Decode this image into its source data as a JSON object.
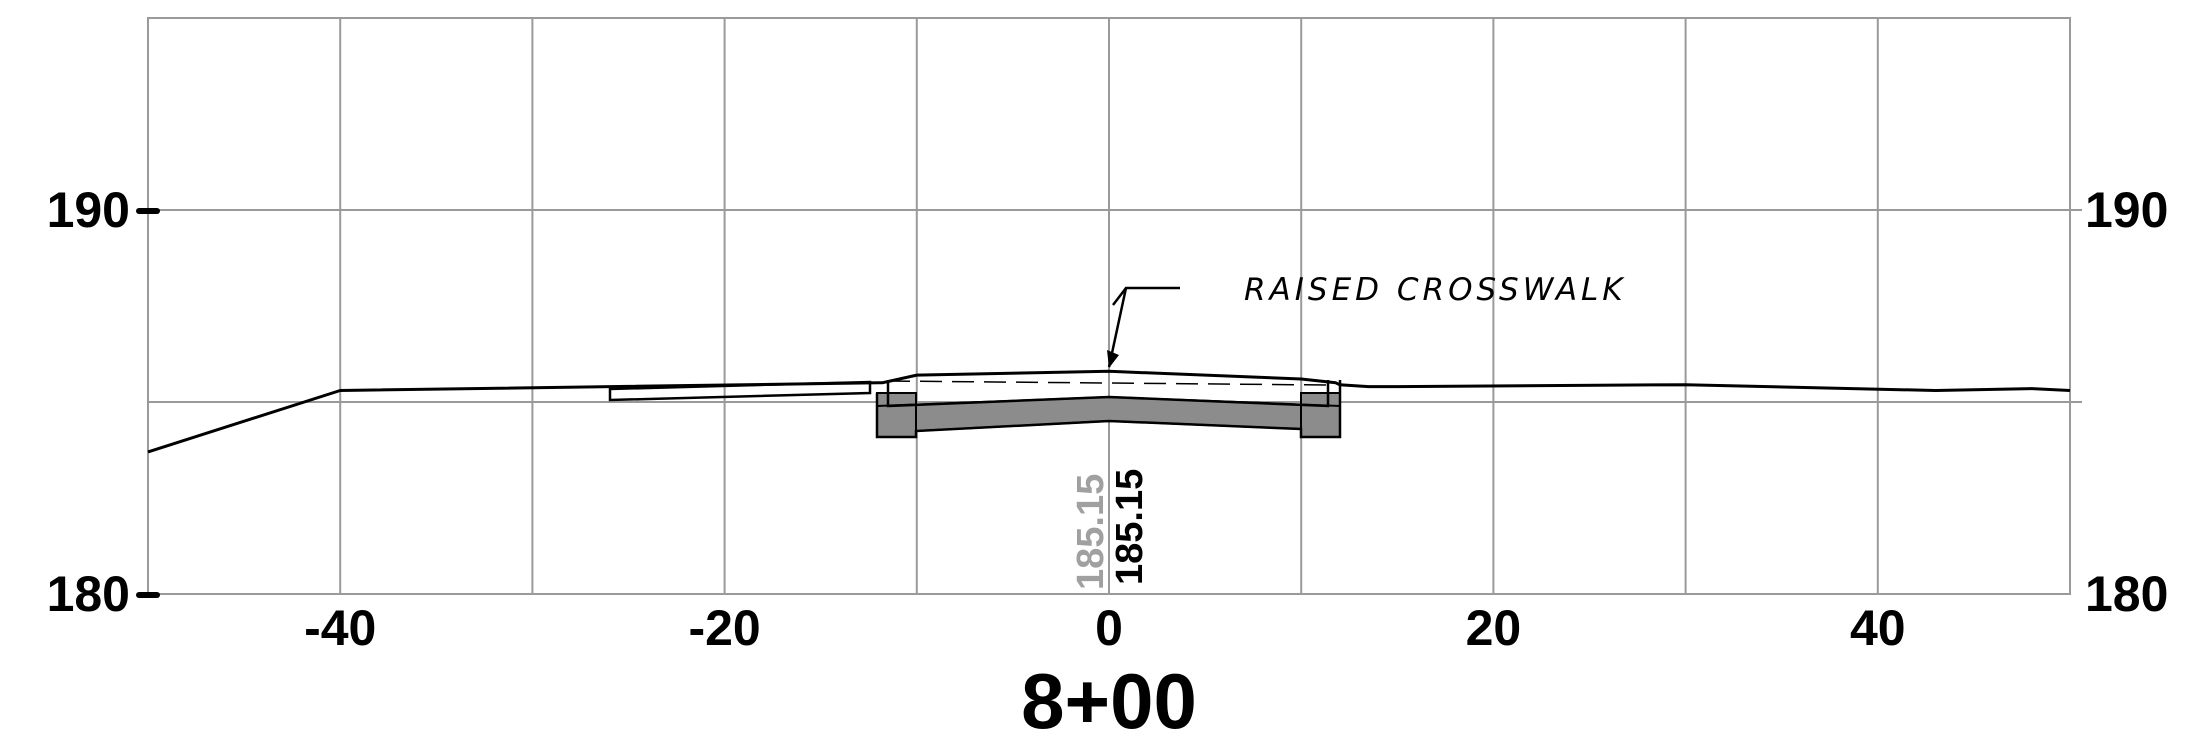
{
  "station_label": "8+00",
  "callout": {
    "text": "RAISED CROSSWALK"
  },
  "elevation_labels": {
    "existing": "185.15",
    "proposed": "185.15"
  },
  "colors": {
    "grid": "#9a9a9a",
    "profile_line": "#000000",
    "structure_fill": "#8c8c8c",
    "existing_elevation_text": "#a0a0a0"
  },
  "chart_data": {
    "type": "line",
    "title": "8+00",
    "xlabel": "",
    "ylabel": "",
    "xlim": [
      -50,
      50
    ],
    "ylim": [
      180,
      195
    ],
    "x_ticks": [
      -40,
      -20,
      0,
      20,
      40
    ],
    "x_tick_labels": [
      "-40",
      "-20",
      "0",
      "20",
      "40"
    ],
    "y_ticks": [
      180,
      190
    ],
    "y_tick_labels": [
      "180",
      "190"
    ],
    "grid": true,
    "grid_x_spacing": 10,
    "grid_y_spacing": 5,
    "series": [
      {
        "x": [
          -50,
          -40,
          -12,
          -11.8,
          -10,
          0,
          10,
          11.8,
          12,
          13.5,
          15,
          30,
          43,
          48,
          50
        ],
        "y": [
          183.7,
          185.3,
          185.5,
          185.5,
          185.7,
          185.8,
          185.6,
          185.5,
          185.45,
          185.4,
          185.4,
          185.45,
          185.3,
          185.35,
          185.3
        ]
      }
    ],
    "annotations": [
      {
        "text": "RAISED CROSSWALK",
        "x": 0,
        "y": 185.8
      },
      {
        "text": "185.15",
        "x": 0,
        "y": 180
      },
      {
        "text": "185.15",
        "x": 0,
        "y": 180
      }
    ]
  }
}
